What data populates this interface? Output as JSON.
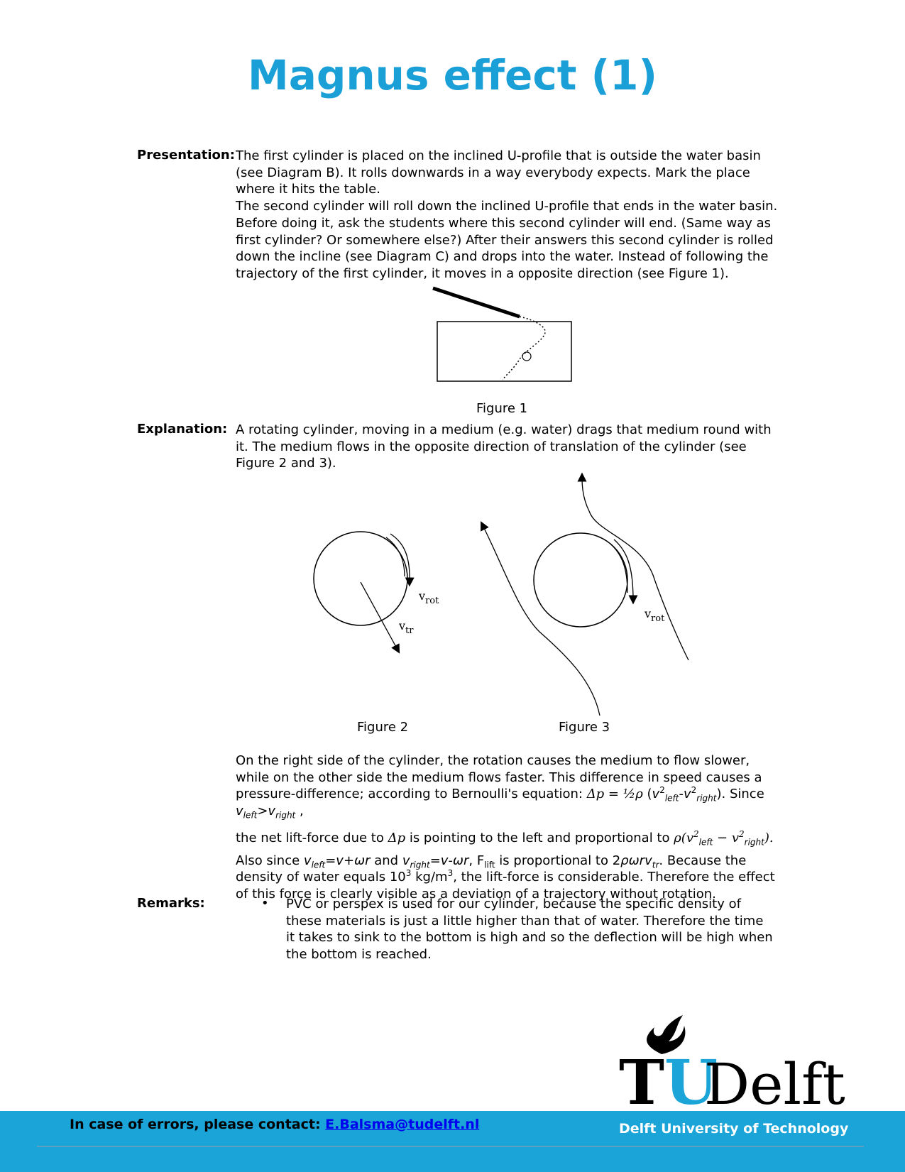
{
  "title": "Magnus effect (1)",
  "presentation": {
    "label": "Presentation:",
    "p1": "The first cylinder is placed on the inclined U-profile that is outside the water basin (see Diagram B). It rolls downwards in a way everybody expects. Mark the place where it hits the table.",
    "p2": "The second cylinder will roll down the inclined U-profile that ends in the water basin. Before doing it, ask the students where this second cylinder will end. (Same way as first cylinder? Or somewhere else?) After their answers this second cylinder is rolled down the incline (see Diagram C) and drops into the water. Instead of following the trajectory of the first cylinder, it moves in a opposite direction (see Figure 1)."
  },
  "figure1": {
    "caption": "Figure 1"
  },
  "explanation": {
    "label": "Explanation:",
    "p1": "A rotating cylinder, moving in a medium (e.g. water) drags that medium round with it. The medium flows in the opposite direction of translation of the cylinder (see Figure 2 and 3)."
  },
  "figure2": {
    "caption": "Figure 2",
    "v_rot_label": "v",
    "v_rot_sub": "rot",
    "v_tr_label": "v",
    "v_tr_sub": "tr"
  },
  "figure3": {
    "caption": "Figure 3",
    "v_rot_label": "v",
    "v_rot_sub": "rot"
  },
  "bernoulli": {
    "line1": "On the right side of the cylinder, the rotation causes the medium to flow slower, while on the other side the medium flows faster. This difference in speed causes a pressure-difference; according to Bernoulli's equation:",
    "eq_lhs": "Δp = ",
    "eq_half": "½",
    "eq_rho": "ρ",
    "eq_paren_open": " (",
    "eq_v": "v",
    "eq_sup2": "2",
    "eq_left": "left",
    "eq_minus": "-",
    "eq_right": "right",
    "eq_paren_close": ").",
    "since": " Since ",
    "v_left": "v",
    "left_sub": "left",
    "gt": ">",
    "v_right": "v",
    "right_sub": "right",
    "comma": " ,",
    "line2a": "the net lift-force due to ",
    "delta_p": "Δp",
    "line2b": " is pointing to the left and proportional to ",
    "rho_expr": "ρ(v",
    "rho_left": "left",
    "rho_minus": " − v",
    "rho_right": "right",
    "rho_close": ").",
    "line3a": "Also since ",
    "vleft_eq": "v",
    "vleft_sub": "left",
    "vleft_rhs": "=v+ωr",
    "and": " and ",
    "vright_eq": "v",
    "vright_sub": "right",
    "vright_rhs": "=v-ωr",
    "comma2": ", F",
    "f_sub": "lift",
    "prop": " is proportional to 2",
    "prop_expr": "ρωrv",
    "prop_sub": "tr",
    "line3b": ". Because the density of water equals 10",
    "sup3a": "3",
    "kg": " kg/m",
    "sup3b": "3",
    "line3c": ", the lift-force is considerable. Therefore the effect of this force is clearly visible as a deviation of a trajectory without rotation."
  },
  "remarks": {
    "label": "Remarks:",
    "bullet": "•",
    "item1": "PVC or perspex is used for our cylinder, because the specific density of these materials is just a little higher than that of water. Therefore the time it takes to sink to the bottom is high and so the deflection will be high when the bottom is reached."
  },
  "footer": {
    "contact_label": "In case of errors, please contact: ",
    "contact_email": "E.Balsma@tudelft.nl",
    "university": "Delft University of Technology",
    "logo_tu": "TU",
    "logo_delft": "Delft"
  },
  "colors": {
    "title": "#1a9fd6",
    "footer_band": "#1aa4d8",
    "logo_u": "#1aa4d8"
  }
}
